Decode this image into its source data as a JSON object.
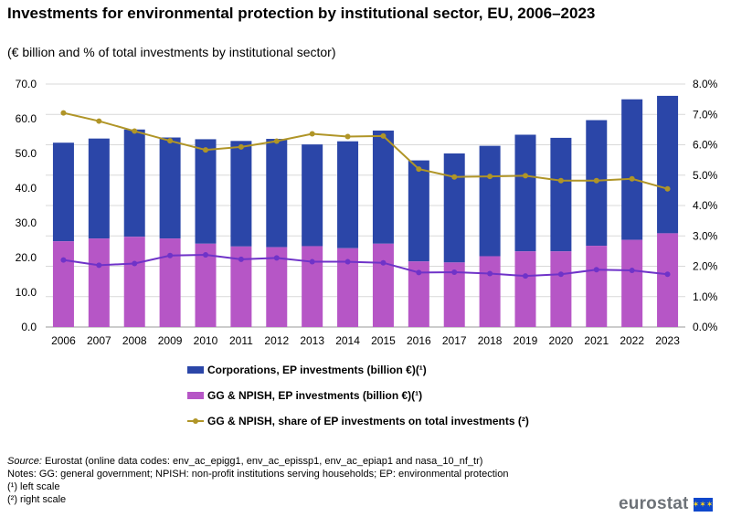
{
  "title": "Investments for environmental protection by institutional sector, EU, 2006–2023",
  "subtitle": "(€ billion and % of total investments by institutional sector)",
  "colors": {
    "corporations": "#2b46a8",
    "gg_npish": "#b656c6",
    "share_line": "#b09527",
    "line2": "#6f33c8",
    "grid": "#d9d9d9"
  },
  "chart_data": {
    "type": "bar",
    "stacked": true,
    "categories": [
      "2006",
      "2007",
      "2008",
      "2009",
      "2010",
      "2011",
      "2012",
      "2013",
      "2014",
      "2015",
      "2016",
      "2017",
      "2018",
      "2019",
      "2020",
      "2021",
      "2022",
      "2023"
    ],
    "left_axis": {
      "ylim": [
        0,
        70
      ],
      "ticks": [
        "0.0",
        "10.0",
        "20.0",
        "30.0",
        "40.0",
        "50.0",
        "60.0",
        "70.0"
      ]
    },
    "right_axis": {
      "ylim": [
        0,
        8
      ],
      "ticks": [
        "0.0%",
        "1.0%",
        "2.0%",
        "3.0%",
        "4.0%",
        "5.0%",
        "6.0%",
        "7.0%",
        "8.0%"
      ]
    },
    "bar_series": [
      {
        "name": "GG & NPISH, EP investments (billion €)(¹)",
        "values": [
          24.7,
          25.5,
          26.0,
          25.5,
          24.0,
          23.2,
          23.0,
          23.3,
          22.7,
          24.0,
          18.9,
          18.6,
          20.4,
          21.8,
          21.8,
          23.4,
          25.1,
          27.0
        ]
      },
      {
        "name": "Corporations, EP investments (billion €)(¹)",
        "values": [
          28.4,
          28.8,
          30.9,
          29.1,
          30.1,
          30.4,
          31.2,
          29.3,
          30.8,
          32.6,
          29.1,
          31.4,
          31.8,
          33.6,
          32.7,
          36.2,
          40.5,
          39.6
        ]
      }
    ],
    "line_series": [
      {
        "name": "GG & NPISH, share of EP investments on total investments (²)",
        "axis": "right",
        "values": [
          7.05,
          6.78,
          6.45,
          6.13,
          5.83,
          5.93,
          6.12,
          6.36,
          6.27,
          6.29,
          5.2,
          4.94,
          4.96,
          4.98,
          4.82,
          4.82,
          4.88,
          4.55
        ]
      },
      {
        "name": "",
        "axis": "left",
        "values": [
          19.3,
          17.8,
          18.3,
          20.6,
          20.8,
          19.5,
          19.9,
          18.8,
          18.8,
          18.5,
          15.7,
          15.8,
          15.4,
          14.7,
          15.2,
          16.5,
          16.3,
          15.2
        ]
      }
    ]
  },
  "legend": {
    "items": [
      {
        "label": "Corporations, EP investments (billion €)(¹)"
      },
      {
        "label": "GG & NPISH, EP investments (billion €)(¹)"
      },
      {
        "label": "GG & NPISH, share of EP investments on total investments (²)"
      }
    ]
  },
  "footer": {
    "source_label": "Source:",
    "source_text": " Eurostat (online data codes: env_ac_epigg1, env_ac_epissp1, env_ac_epiap1 and nasa_10_nf_tr)",
    "notes": "Notes: GG: general government;  NPISH: non-profit institutions serving households; EP: environmental  protection",
    "note1": "(¹) left scale",
    "note2": "(²) right scale"
  },
  "logo": {
    "text": "eurostat",
    "flag_stars": "✶✶✶"
  }
}
